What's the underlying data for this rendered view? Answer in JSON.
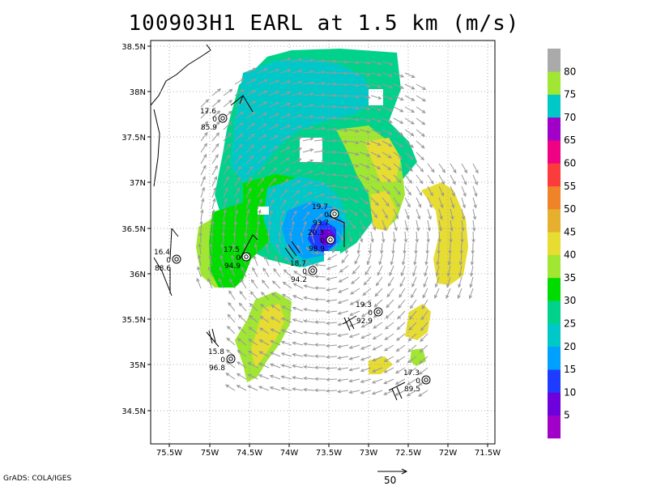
{
  "title": "100903H1 EARL at 1.5 km (m/s)",
  "credit": "GrADS: COLA/IGES",
  "reference_vector": {
    "label": "50"
  },
  "axes": {
    "x_ticks": [
      "75.5W",
      "75W",
      "74.5W",
      "74W",
      "73.5W",
      "73W",
      "72.5W",
      "72W",
      "71.5W"
    ],
    "y_ticks": [
      "38.5N",
      "38N",
      "37.5N",
      "37N",
      "36.5N",
      "36N",
      "35.5N",
      "35N",
      "34.5N"
    ],
    "lon_range": [
      -75.75,
      -71.6
    ],
    "lat_range": [
      34.15,
      38.55
    ]
  },
  "colorbar": {
    "labels": [
      "5",
      "10",
      "15",
      "20",
      "25",
      "30",
      "35",
      "40",
      "45",
      "50",
      "55",
      "60",
      "65",
      "70",
      "75",
      "80"
    ],
    "colors": [
      "#a000c8",
      "#6e00dc",
      "#1e3cff",
      "#00a0ff",
      "#00c8c8",
      "#00d28c",
      "#00dc00",
      "#a0e632",
      "#e6dc32",
      "#e6af2d",
      "#f08228",
      "#fa3c3c",
      "#f00082",
      "#a000c8",
      "#00c8c8",
      "#a0e632",
      "#aaaaaa"
    ]
  },
  "stations": [
    {
      "top": "17.6",
      "mid": "0",
      "bottom": "85.9"
    },
    {
      "top": "16.4",
      "mid": "0",
      "bottom": "88.6"
    },
    {
      "top": "17.5",
      "mid": "0",
      "bottom": "94.9"
    },
    {
      "top": "19.7",
      "mid": "0",
      "bottom": "93.7"
    },
    {
      "top": "20.3",
      "mid": "0",
      "bottom": "98.9"
    },
    {
      "top": "18.7",
      "mid": "0",
      "bottom": "94.2"
    },
    {
      "top": "19.3",
      "mid": "0",
      "bottom": "92.9"
    },
    {
      "top": "15.8",
      "mid": "0",
      "bottom": "96.8"
    },
    {
      "top": "17.3",
      "mid": "0",
      "bottom": "89.5"
    }
  ]
}
